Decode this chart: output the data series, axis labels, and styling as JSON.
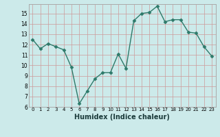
{
  "x": [
    0,
    1,
    2,
    3,
    4,
    5,
    6,
    7,
    8,
    9,
    10,
    11,
    12,
    13,
    14,
    15,
    16,
    17,
    18,
    19,
    20,
    21,
    22,
    23
  ],
  "y": [
    12.5,
    11.6,
    12.1,
    11.8,
    11.5,
    9.8,
    6.3,
    7.5,
    8.7,
    9.3,
    9.3,
    11.1,
    9.7,
    14.3,
    15.0,
    15.1,
    15.7,
    14.2,
    14.4,
    14.4,
    13.2,
    13.1,
    11.8,
    10.9
  ],
  "xlabel": "Humidex (Indice chaleur)",
  "ylim": [
    6,
    15.9
  ],
  "xlim": [
    -0.5,
    23.5
  ],
  "yticks": [
    6,
    7,
    8,
    9,
    10,
    11,
    12,
    13,
    14,
    15
  ],
  "xticks": [
    0,
    1,
    2,
    3,
    4,
    5,
    6,
    7,
    8,
    9,
    10,
    11,
    12,
    13,
    14,
    15,
    16,
    17,
    18,
    19,
    20,
    21,
    22,
    23
  ],
  "xtick_labels": [
    "0",
    "1",
    "2",
    "3",
    "4",
    "5",
    "6",
    "7",
    "8",
    "9",
    "10",
    "11",
    "12",
    "13",
    "14",
    "15",
    "16",
    "17",
    "18",
    "19",
    "20",
    "21",
    "22",
    "23"
  ],
  "line_color": "#2d7a6a",
  "marker_color": "#2d7a6a",
  "bg_color": "#cceaea",
  "grid_color": "#cc9999",
  "spine_color": "#aaaaaa",
  "xlabel_fontsize": 7,
  "tick_fontsize": 5,
  "ytick_fontsize": 5.5,
  "linewidth": 1.0,
  "markersize": 2.5
}
